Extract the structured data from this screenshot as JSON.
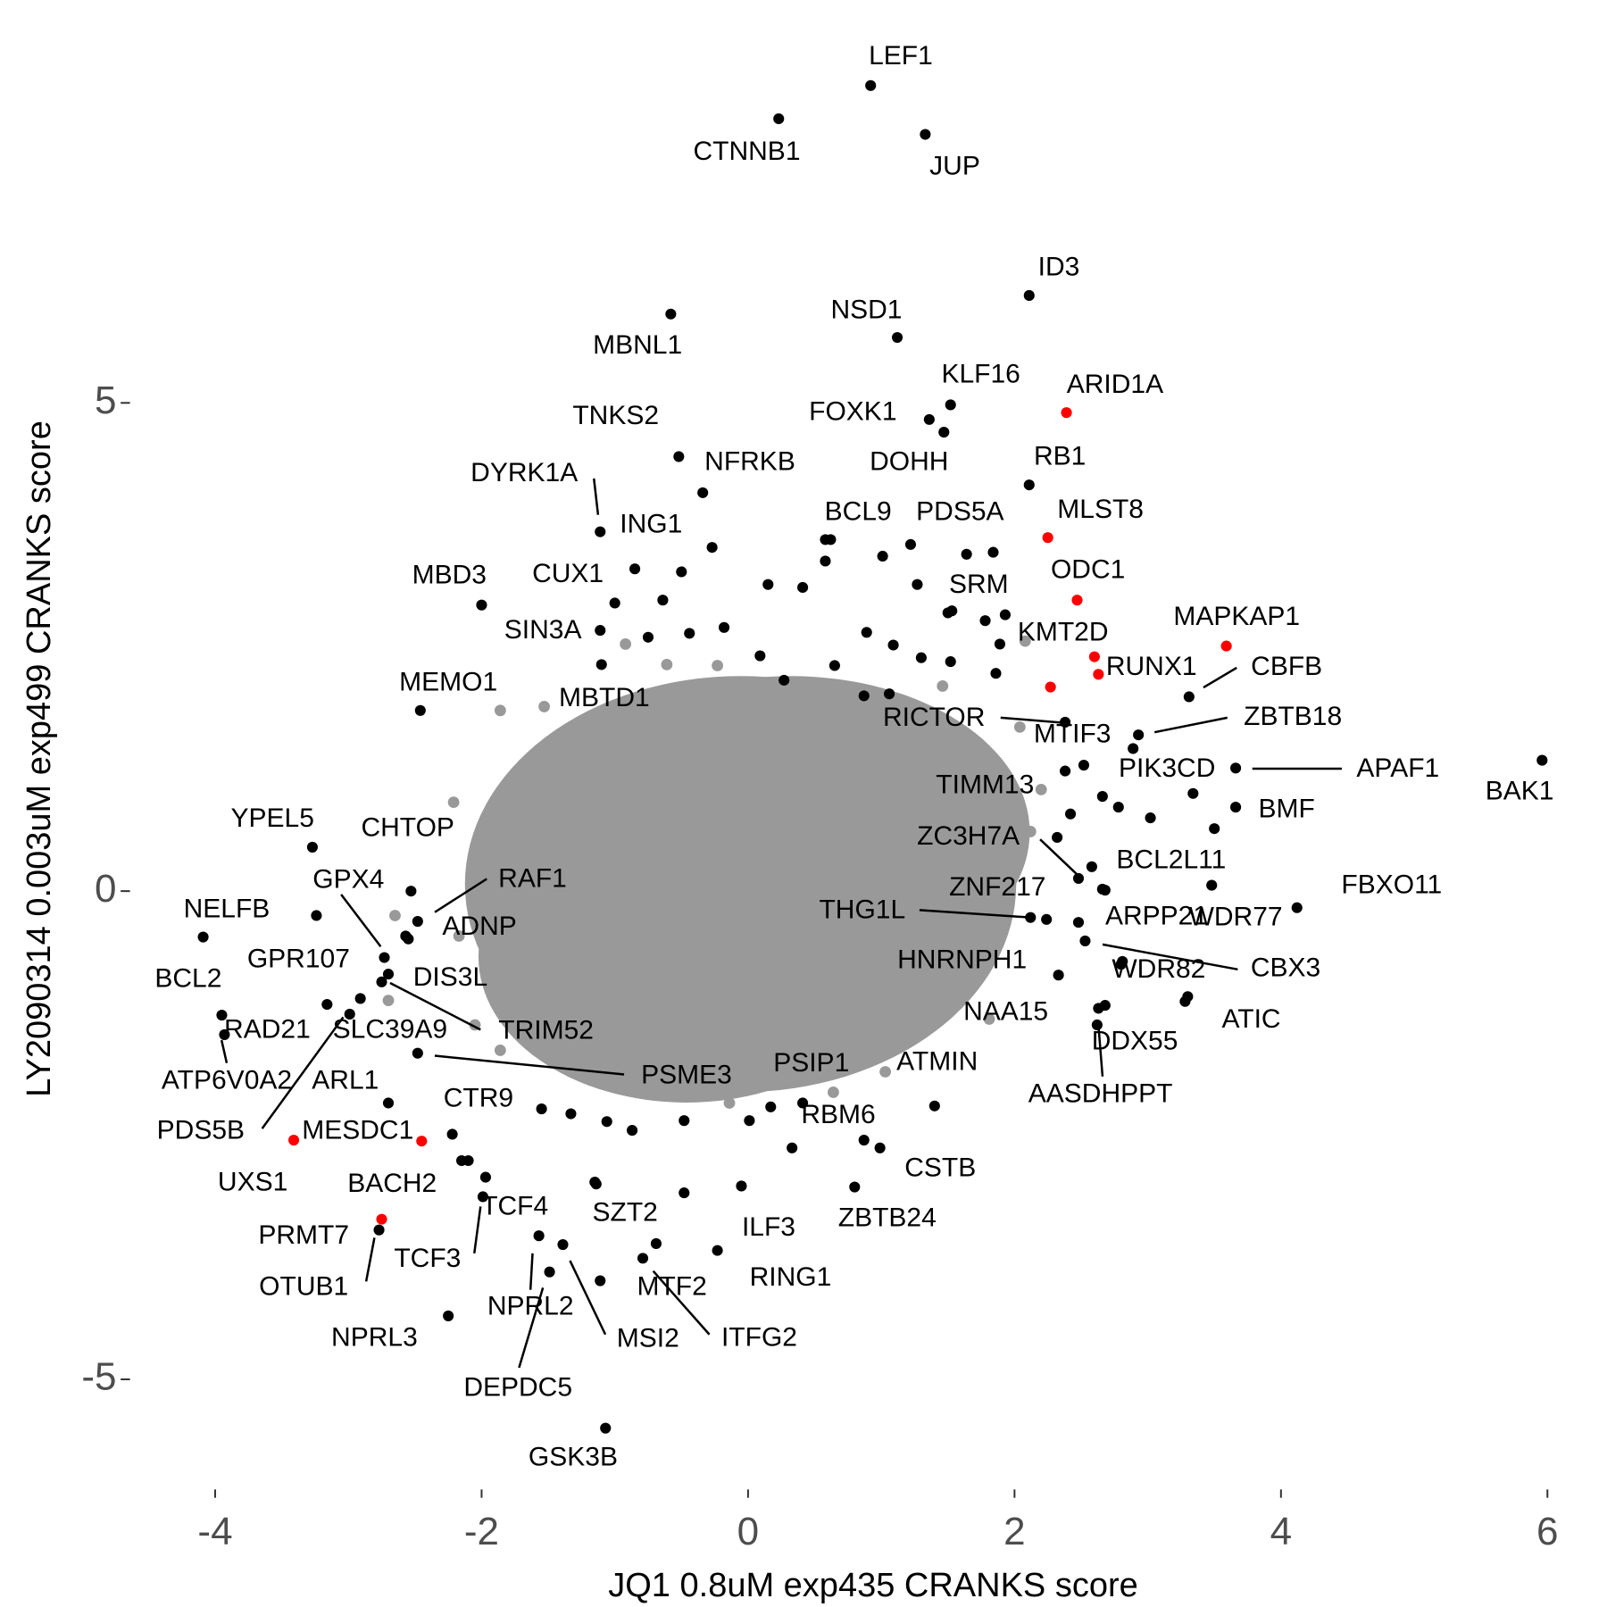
{
  "chart_data": {
    "type": "scatter",
    "xlabel": "JQ1 0.8uM exp435 CRANKS score",
    "ylabel": "LY2090314 0.003uM exp499 CRANKS score",
    "xlim": [
      -4.6,
      6.33
    ],
    "ylim": [
      -6.0,
      8.7
    ],
    "xticks": [
      -4,
      -2,
      0,
      2,
      4,
      6
    ],
    "yticks": [
      -5,
      0,
      5
    ],
    "series": [
      {
        "color": "#999999",
        "x": [
          -0.23,
          -1.86,
          -2.21,
          -2.65,
          -2.7,
          -2.05,
          -1.53,
          1.46,
          2.08,
          2.2,
          2.12,
          1.18,
          1.03,
          -1.93,
          -1.86,
          -1.39,
          -0.92,
          -0.61,
          2.04,
          1.81,
          0.64,
          -0.14,
          -1.7,
          -2.01,
          -2.17
        ],
        "y": [
          2.31,
          1.85,
          0.91,
          -0.25,
          -1.12,
          -1.37,
          1.89,
          2.1,
          2.56,
          1.04,
          0.61,
          -1.42,
          -1.85,
          -0.67,
          -1.63,
          -1.74,
          2.53,
          2.32,
          1.68,
          -1.31,
          -2.06,
          -2.17,
          1.04,
          0.29,
          -0.46
        ]
      },
      {
        "color": "#000000",
        "labels": [
          "LEF1",
          "CTNNB1",
          "JUP",
          "ID3",
          "NSD1",
          "MBNL1",
          "KLF16",
          "FOXK1",
          "DOHH",
          "TNKS2",
          "NFRKB",
          "RB1",
          "DYRK1A",
          "ING1",
          "BCL9",
          "PDS5A",
          "MBD3",
          "CUX1",
          "SRM",
          "SIN3A",
          "KMT2D",
          "CBFB",
          "MBTD1",
          "MEMO1",
          "RICTOR",
          "ZBTB18",
          "MTIF3",
          "APAF1",
          "BAK1",
          "PIK3CD",
          "TIMM13",
          "BMF",
          "YPEL5",
          "CHTOP",
          "ZC3H7A",
          "BCL2L11",
          "FBXO11",
          "GPX4",
          "RAF1",
          "NELFB",
          "ZNF217",
          "THG1L",
          "ARPP21",
          "WDR77",
          "ADNP",
          "CBX3",
          "GPR107",
          "DIS3L",
          "HNRNPH1",
          "WDR82",
          "BCL2",
          "TRIM52",
          "ATIC",
          "NAA15",
          "DDX55",
          "AASDHPPT",
          "RAD21",
          "SLC39A9",
          "ATP6V0A2",
          "PDS5B",
          "ARL1",
          "PSME3",
          "PSIP1",
          "ATMIN",
          "CTR9",
          "RBM6",
          "CSTB",
          "BACH2",
          "ZBTB24",
          "TCF4",
          "SZT2",
          "ILF3",
          "TCF3",
          "RING1",
          "OTUB1",
          "MTF2",
          "ITFG2",
          "NPRL2",
          "MSI2",
          "DEPDC5",
          "NPRL3",
          "GSK3B",
          null,
          null,
          null,
          null,
          null,
          null,
          null,
          null,
          null,
          null,
          null,
          null,
          null,
          null,
          null,
          null,
          null,
          null,
          null,
          null,
          null,
          null,
          null,
          null,
          null,
          null,
          null,
          null,
          null,
          null,
          null,
          null,
          null,
          null,
          null,
          null,
          null,
          null,
          null,
          null,
          null,
          null,
          null,
          null,
          null
        ],
        "x": [
          0.92,
          0.23,
          1.33,
          2.11,
          1.12,
          -0.58,
          1.52,
          1.36,
          1.47,
          -0.52,
          -0.34,
          2.11,
          -1.11,
          -0.27,
          0.62,
          1.22,
          -2.0,
          -0.85,
          1.53,
          -1.11,
          1.89,
          3.31,
          -1.1,
          -2.46,
          2.38,
          2.93,
          2.89,
          3.66,
          5.96,
          3.34,
          2.38,
          3.66,
          -3.27,
          -2.53,
          2.48,
          2.66,
          4.12,
          -3.24,
          -2.48,
          -4.09,
          2.24,
          2.12,
          2.48,
          3.48,
          -2.55,
          2.53,
          -2.73,
          -2.7,
          2.33,
          2.8,
          -3.95,
          -2.75,
          3.3,
          2.63,
          2.68,
          2.62,
          -3.16,
          -2.91,
          -3.93,
          -2.99,
          -2.7,
          -2.48,
          0.41,
          1.4,
          -2.22,
          0.87,
          0.99,
          -2.1,
          0.8,
          -1.97,
          -1.14,
          -0.05,
          -1.99,
          -0.23,
          -2.77,
          -0.79,
          -0.69,
          -1.57,
          -1.39,
          -1.49,
          -2.25,
          -1.07,
          0.58,
          0.58,
          1.01,
          1.27,
          1.64,
          1.84,
          -0.44,
          -0.75,
          -0.18,
          0.09,
          0.65,
          0.89,
          1.09,
          1.3,
          1.52,
          1.78,
          1.93,
          1.86,
          1.06,
          0.87,
          0.27,
          2.42,
          2.66,
          2.78,
          3.02,
          3.5,
          2.58,
          2.68,
          2.32,
          2.52,
          2.81,
          3.28,
          -1.55,
          -1.33,
          -1.06,
          -0.87,
          -0.48,
          0.01,
          0.17,
          0.33,
          -1.15,
          -0.48,
          -1.11,
          -2.15,
          -0.5,
          0.15,
          0.41,
          -1.0,
          -0.64,
          1.5,
          -2.57
        ],
        "y": [
          8.25,
          7.91,
          7.75,
          6.1,
          5.67,
          5.91,
          4.98,
          4.83,
          4.7,
          4.45,
          4.08,
          4.16,
          3.68,
          3.52,
          3.6,
          3.55,
          2.93,
          3.3,
          2.87,
          2.67,
          2.53,
          1.99,
          2.32,
          1.85,
          1.73,
          1.6,
          1.46,
          1.26,
          1.34,
          1.0,
          1.23,
          0.86,
          0.45,
          0.0,
          0.13,
          0.02,
          -0.17,
          -0.25,
          -0.31,
          -0.47,
          -0.29,
          -0.27,
          -0.32,
          0.06,
          -0.49,
          -0.51,
          -0.68,
          -0.85,
          -0.86,
          -0.75,
          -1.27,
          -0.93,
          -1.08,
          -1.2,
          -1.17,
          -1.37,
          -1.16,
          -1.1,
          -1.47,
          -1.26,
          -2.17,
          -1.66,
          -2.17,
          -2.2,
          -2.49,
          -2.55,
          -2.63,
          -2.76,
          -3.03,
          -2.93,
          -3.0,
          -3.02,
          -3.13,
          -3.68,
          -3.47,
          -3.76,
          -3.61,
          -3.53,
          -3.62,
          -3.9,
          -4.35,
          -5.5,
          3.6,
          3.38,
          3.43,
          3.14,
          3.45,
          3.47,
          2.64,
          2.6,
          2.7,
          2.41,
          2.31,
          2.65,
          2.52,
          2.39,
          2.35,
          2.77,
          2.83,
          2.23,
          2.02,
          2.0,
          2.16,
          0.79,
          0.97,
          0.86,
          0.75,
          0.64,
          0.25,
          0.01,
          0.55,
          1.29,
          -0.72,
          -1.13,
          -2.23,
          -2.28,
          -2.36,
          -2.45,
          -2.35,
          -2.35,
          -2.21,
          -2.63,
          -2.98,
          -3.09,
          -3.99,
          -2.76,
          3.27,
          3.14,
          3.11,
          2.95,
          2.98,
          2.85,
          -0.46
        ]
      },
      {
        "color": "#ff0000",
        "labels": [
          "ARID1A",
          "MLST8",
          "ODC1",
          "MAPKAP1",
          "RUNX1",
          null,
          null,
          "MESDC1",
          "UXS1",
          "PRMT7"
        ],
        "x": [
          2.39,
          2.25,
          2.47,
          3.59,
          2.63,
          2.6,
          2.27,
          -2.45,
          -3.41,
          -2.75
        ],
        "y": [
          4.9,
          3.62,
          2.98,
          2.51,
          2.22,
          2.4,
          2.09,
          -2.56,
          -2.55,
          -3.36
        ]
      }
    ]
  }
}
